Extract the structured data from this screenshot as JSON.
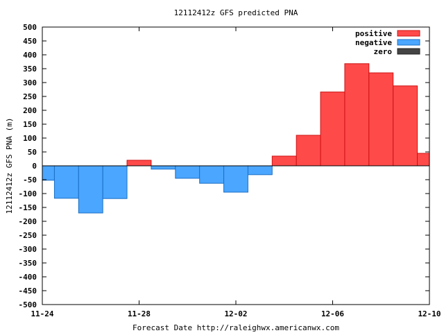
{
  "chart_data": {
    "type": "bar",
    "title": "12112412z GFS predicted PNA",
    "xlabel": "Forecast Date http://raleighwx.americanwx.com",
    "ylabel": "12112412z GFS PNA (m)",
    "ylim": [
      -500,
      500
    ],
    "yticks": [
      -500,
      -450,
      -400,
      -350,
      -300,
      -250,
      -200,
      -150,
      -100,
      -50,
      0,
      50,
      100,
      150,
      200,
      250,
      300,
      350,
      400,
      450,
      500
    ],
    "xlim_days": [
      0,
      16
    ],
    "xticks": [
      {
        "day": 0,
        "label": "11-24"
      },
      {
        "day": 4,
        "label": "11-28"
      },
      {
        "day": 8,
        "label": "12-02"
      },
      {
        "day": 12,
        "label": "12-06"
      },
      {
        "day": 16,
        "label": "12-10"
      }
    ],
    "bar_width_days": 1,
    "bars": [
      {
        "center_day": 0,
        "value": -52
      },
      {
        "center_day": 1,
        "value": -117
      },
      {
        "center_day": 2,
        "value": -170
      },
      {
        "center_day": 3,
        "value": -118
      },
      {
        "center_day": 4,
        "value": 20
      },
      {
        "center_day": 5,
        "value": -12
      },
      {
        "center_day": 6,
        "value": -45
      },
      {
        "center_day": 7,
        "value": -63
      },
      {
        "center_day": 8,
        "value": -95
      },
      {
        "center_day": 9,
        "value": -32
      },
      {
        "center_day": 10,
        "value": 35
      },
      {
        "center_day": 11,
        "value": 110
      },
      {
        "center_day": 12,
        "value": 266
      },
      {
        "center_day": 13,
        "value": 368
      },
      {
        "center_day": 14,
        "value": 335
      },
      {
        "center_day": 15,
        "value": 288
      },
      {
        "center_day": 16,
        "value": 45
      }
    ],
    "legend": {
      "position": "top-right",
      "entries": [
        {
          "label": "positive",
          "color": "#ff4a4a"
        },
        {
          "label": "negative",
          "color": "#4aa6ff"
        },
        {
          "label": "zero",
          "color": "#444444"
        }
      ]
    },
    "colors": {
      "positive": "#ff4a4a",
      "positive_edge": "#cc1111",
      "negative": "#4aa6ff",
      "negative_edge": "#1c6fc4",
      "zero_edge": "#222222"
    },
    "grid": false
  }
}
